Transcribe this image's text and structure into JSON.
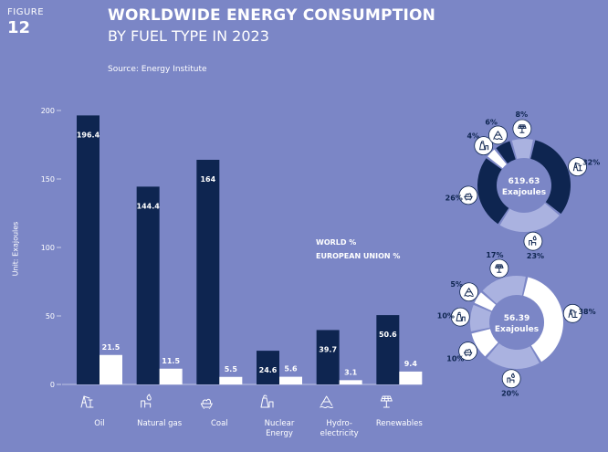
{
  "figure": {
    "label": "FIGURE",
    "number": "12"
  },
  "title": {
    "line1": "WORLDWIDE ENERGY CONSUMPTION",
    "line2": "BY FUEL TYPE IN 2023"
  },
  "source": "Source: Energy Institute",
  "unit_label": "Unit: Exajoules",
  "legend": {
    "world": "WORLD %",
    "eu": "EUROPEAN UNION %"
  },
  "colors": {
    "background": "#7b86c6",
    "world": "#0e2550",
    "eu": "#ffffff",
    "light": "#aab2e0"
  },
  "chart_data": [
    {
      "type": "bar",
      "categories": [
        [
          "Oil"
        ],
        [
          "Natural gas"
        ],
        [
          "Coal"
        ],
        [
          "Nuclear",
          "Energy"
        ],
        [
          "Hydro-",
          "electricity"
        ],
        [
          "Renewables"
        ]
      ],
      "series": [
        {
          "values": [
            196.4,
            144.4,
            164,
            24.6,
            39.7,
            50.6
          ],
          "labels": [
            "196.4",
            "144.4",
            "164",
            "24.6",
            "39.7",
            "50.6"
          ]
        },
        {
          "values": [
            21.5,
            11.5,
            5.5,
            5.6,
            3.1,
            9.4
          ],
          "labels": [
            "21.5",
            "11.5",
            "5.5",
            "5.6",
            "3.1",
            "9.4"
          ]
        }
      ],
      "ylim": [
        0,
        200
      ],
      "yticks": [
        0,
        50,
        100,
        150,
        200
      ],
      "ylabel": "Unit: Exajoules",
      "icons": [
        "oil-icon",
        "natural-gas-icon",
        "coal-icon",
        "nuclear-icon",
        "hydro-icon",
        "renewables-icon"
      ]
    },
    {
      "type": "pie",
      "center": {
        "value": "619.63",
        "unit": "Exajoules"
      },
      "slices": [
        {
          "value": 32,
          "label": "32%",
          "fuel": "oil",
          "color": "#0e2550",
          "icon": "oil-icon"
        },
        {
          "value": 23,
          "label": "23%",
          "fuel": "natural gas",
          "color": "#aab2e0",
          "icon": "natural-gas-icon"
        },
        {
          "value": 26,
          "label": "26%",
          "fuel": "coal",
          "color": "#0e2550",
          "icon": "coal-icon"
        },
        {
          "value": 4,
          "label": "4%",
          "fuel": "nuclear",
          "color": "#ffffff",
          "icon": "nuclear-icon"
        },
        {
          "value": 6,
          "label": "6%",
          "fuel": "hydro",
          "color": "#0e2550",
          "icon": "hydro-icon"
        },
        {
          "value": 8,
          "label": "8%",
          "fuel": "renewables",
          "color": "#aab2e0",
          "icon": "renewables-icon"
        }
      ]
    },
    {
      "type": "pie",
      "center": {
        "value": "56.39",
        "unit": "Exajoules"
      },
      "slices": [
        {
          "value": 38,
          "label": "38%",
          "fuel": "oil",
          "color": "#ffffff",
          "icon": "oil-icon"
        },
        {
          "value": 20,
          "label": "20%",
          "fuel": "natural gas",
          "color": "#aab2e0",
          "icon": "natural-gas-icon"
        },
        {
          "value": 10,
          "label": "10%",
          "fuel": "coal",
          "color": "#ffffff",
          "icon": "coal-icon"
        },
        {
          "value": 10,
          "label": "10%",
          "fuel": "nuclear",
          "color": "#aab2e0",
          "icon": "nuclear-icon"
        },
        {
          "value": 5,
          "label": "5%",
          "fuel": "hydro",
          "color": "#ffffff",
          "icon": "hydro-icon"
        },
        {
          "value": 17,
          "label": "17%",
          "fuel": "renewables",
          "color": "#aab2e0",
          "icon": "renewables-icon"
        }
      ]
    }
  ]
}
